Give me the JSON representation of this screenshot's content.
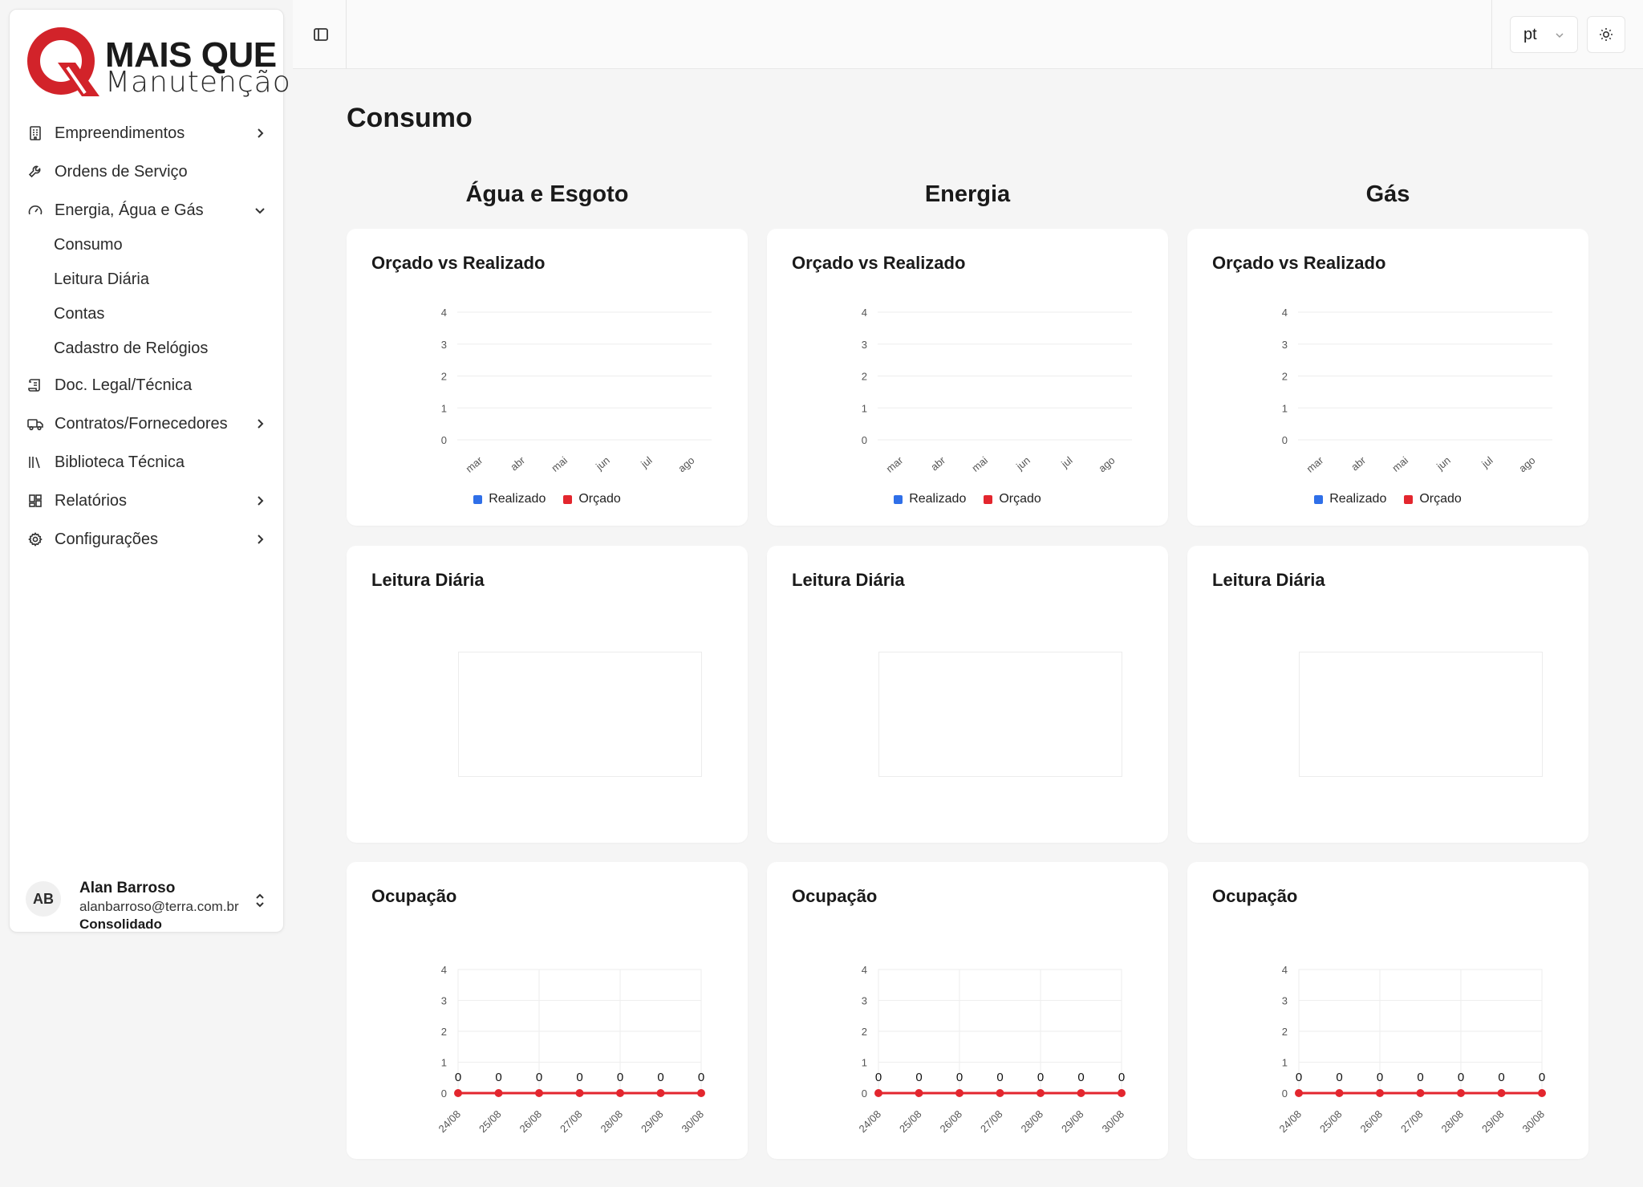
{
  "logo": {
    "line1": "MAIS QUE",
    "line2": "Manutenção",
    "brand_color": "#d2232a"
  },
  "sidebar": {
    "items": [
      {
        "label": "Empreendimentos",
        "icon": "building-icon",
        "has_chevron": true
      },
      {
        "label": "Ordens de Serviço",
        "icon": "wrench-icon",
        "has_chevron": false
      },
      {
        "label": "Energia, Água e Gás",
        "icon": "gauge-icon",
        "has_chevron": true,
        "expanded": true
      },
      {
        "label": "Doc. Legal/Técnica",
        "icon": "scroll-icon",
        "has_chevron": false
      },
      {
        "label": "Contratos/Fornecedores",
        "icon": "truck-icon",
        "has_chevron": true
      },
      {
        "label": "Biblioteca Técnica",
        "icon": "library-icon",
        "has_chevron": false
      },
      {
        "label": "Relatórios",
        "icon": "dashboard-icon",
        "has_chevron": true
      },
      {
        "label": "Configurações",
        "icon": "gear-icon",
        "has_chevron": true
      }
    ],
    "subitems": [
      "Consumo",
      "Leitura Diária",
      "Contas",
      "Cadastro de Relógios"
    ]
  },
  "user": {
    "initials": "AB",
    "name": "Alan Barroso",
    "email": "alanbarroso@terra.com.br",
    "context": "Consolidado"
  },
  "topbar": {
    "language": "pt"
  },
  "page": {
    "title": "Consumo"
  },
  "columns": [
    {
      "title": "Água e Esgoto"
    },
    {
      "title": "Energia"
    },
    {
      "title": "Gás"
    }
  ],
  "cards": {
    "budget_title": "Orçado vs Realizado",
    "daily_title": "Leitura Diária",
    "occupancy_title": "Ocupação"
  },
  "colors": {
    "realizado": "#2f6fe8",
    "orcado": "#e3262e",
    "grid": "#eeeeee",
    "axis_text": "#555555"
  },
  "chart_data": [
    {
      "type": "bar",
      "title": "Orçado vs Realizado",
      "categories": [
        "mar",
        "abr",
        "mai",
        "jun",
        "jul",
        "ago"
      ],
      "series": [
        {
          "name": "Realizado",
          "values": [
            0,
            0,
            0,
            0,
            0,
            0
          ]
        },
        {
          "name": "Orçado",
          "values": [
            0,
            0,
            0,
            0,
            0,
            0
          ]
        }
      ],
      "yticks": [
        0,
        1,
        2,
        3,
        4
      ],
      "ylim": [
        0,
        4
      ],
      "legend": "bottom"
    },
    {
      "type": "line",
      "title": "Ocupação",
      "categories": [
        "24/08",
        "25/08",
        "26/08",
        "27/08",
        "28/08",
        "29/08",
        "30/08"
      ],
      "series": [
        {
          "values": [
            0,
            0,
            0,
            0,
            0,
            0,
            0
          ]
        }
      ],
      "yticks": [
        0,
        1,
        2,
        3,
        4
      ],
      "ylim": [
        0,
        4
      ],
      "data_labels": true
    }
  ]
}
